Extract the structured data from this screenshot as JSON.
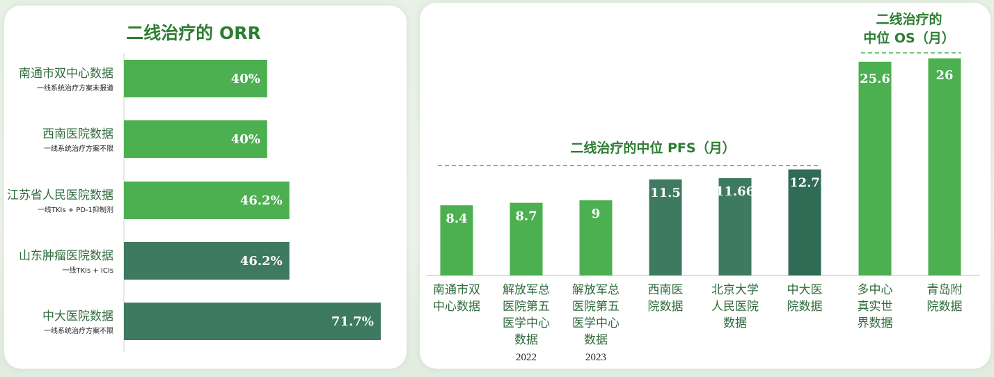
{
  "colors": {
    "light_green": "#4caf50",
    "dark_green": "#3d7a5f",
    "darker_green": "#2f6b55",
    "title_green": "#2e7d32",
    "category_green": "#2f6b3c"
  },
  "chart_data": [
    {
      "type": "bar",
      "orientation": "horizontal",
      "title": "二线治疗的 ORR",
      "xlim": [
        0,
        100
      ],
      "categories": [
        {
          "name": "南通市双中心数据",
          "note": "一线系统治疗方案未报道",
          "value": 40,
          "label": "40%",
          "color": "#4caf50"
        },
        {
          "name": "西南医院数据",
          "note": "一线系统治疗方案不限",
          "value": 40,
          "label": "40%",
          "color": "#4caf50"
        },
        {
          "name": "江苏省人民医院数据",
          "note": "一线TKIs + PD-1抑制剂",
          "value": 46.2,
          "label": "46.2%",
          "color": "#4caf50"
        },
        {
          "name": "山东肿瘤医院数据",
          "note": "一线TKIs + ICIs",
          "value": 46.2,
          "label": "46.2%",
          "color": "#3d7a5f"
        },
        {
          "name": "中大医院数据",
          "note": "一线系统治疗方案不限",
          "value": 71.7,
          "label": "71.7%",
          "color": "#3d7a5f"
        }
      ]
    },
    {
      "type": "bar",
      "orientation": "vertical",
      "ylim": [
        0,
        28
      ],
      "groups": [
        {
          "title_lines": [
            "二线治疗的中位 PFS（月）"
          ],
          "members": [
            0,
            1,
            2,
            3,
            4,
            5
          ]
        },
        {
          "title_lines": [
            "二线治疗的",
            "中位 OS（月）"
          ],
          "members": [
            6,
            7
          ]
        }
      ],
      "categories": [
        {
          "lines": [
            "南通市双",
            "中心数据"
          ],
          "year": "",
          "value": 8.4,
          "label": "8.4",
          "color": "#4caf50"
        },
        {
          "lines": [
            "解放军总",
            "医院第五",
            "医学中心",
            "数据"
          ],
          "year": "2022",
          "value": 8.7,
          "label": "8.7",
          "color": "#4caf50"
        },
        {
          "lines": [
            "解放军总",
            "医院第五",
            "医学中心",
            "数据"
          ],
          "year": "2023",
          "value": 9,
          "label": "9",
          "color": "#4caf50"
        },
        {
          "lines": [
            "西南医",
            "院数据"
          ],
          "year": "",
          "value": 11.5,
          "label": "11.5",
          "color": "#3d7a5f"
        },
        {
          "lines": [
            "北京大学",
            "人民医院",
            "数据"
          ],
          "year": "",
          "value": 11.66,
          "label": "11.66",
          "color": "#3d7a5f"
        },
        {
          "lines": [
            "中大医",
            "院数据"
          ],
          "year": "",
          "value": 12.7,
          "label": "12.7",
          "color": "#2f6b55"
        },
        {
          "lines": [
            "多中心",
            "真实世",
            "界数据"
          ],
          "year": "",
          "value": 25.6,
          "label": "25.6",
          "color": "#4caf50"
        },
        {
          "lines": [
            "青岛附",
            "院数据"
          ],
          "year": "",
          "value": 26,
          "label": "26",
          "color": "#4caf50"
        }
      ]
    }
  ]
}
